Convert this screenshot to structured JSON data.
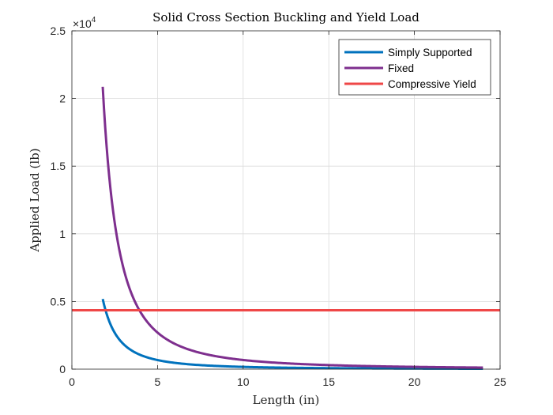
{
  "chart_data": {
    "type": "line",
    "title": "Solid Cross Section Buckling and Yield Load",
    "xlabel": "Length (in)",
    "ylabel": "Applied Load (lb)",
    "exponent_label": "×10",
    "exponent_power": "4",
    "xlim": [
      0,
      25
    ],
    "ylim": [
      0,
      25000
    ],
    "xticks": [
      0,
      5,
      10,
      15,
      20,
      25
    ],
    "xtick_labels": [
      "0",
      "5",
      "10",
      "15",
      "20",
      "25"
    ],
    "yticks": [
      0,
      5000,
      10000,
      15000,
      20000,
      25000
    ],
    "ytick_labels": [
      "0",
      "0.5",
      "1",
      "1.5",
      "2",
      "2.5"
    ],
    "grid": true,
    "legend_position": "top-right",
    "series": [
      {
        "name": "Simply Supported",
        "color": "#0072BD",
        "formula": "k/x^2",
        "k": 16800,
        "x_range": [
          1.8,
          24
        ]
      },
      {
        "name": "Fixed",
        "color": "#7E2F8E",
        "formula": "k/x^2",
        "k": 67600,
        "x_range": [
          1.8,
          24
        ]
      },
      {
        "name": "Compressive Yield",
        "color": "#EF4747",
        "formula": "constant",
        "value": 4350,
        "x_range": [
          0,
          25
        ]
      }
    ]
  }
}
